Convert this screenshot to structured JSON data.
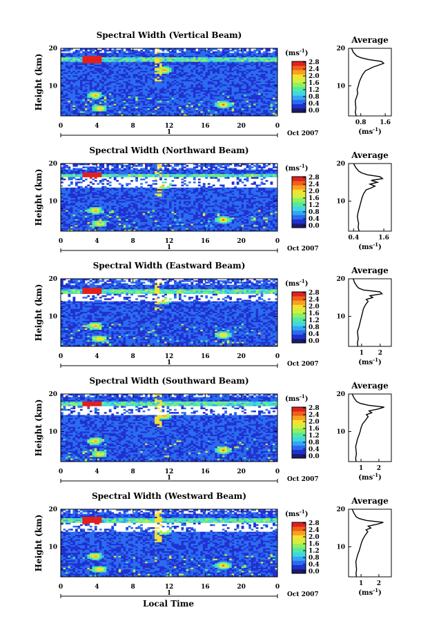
{
  "figure": {
    "xlabel": "Local Time",
    "date_label": "Oct 2007",
    "day_label": "1",
    "avg_title": "Average",
    "cbar_unit_base": "(ms",
    "cbar_unit_exp": "-1",
    "cbar_unit_close": ")",
    "avg_unit_base": "(ms",
    "avg_unit_exp": "-1",
    "avg_unit_close": ")",
    "ylabel": "Height (km)"
  },
  "colorbar": {
    "ticks": [
      "0.0",
      "0.4",
      "0.8",
      "1.2",
      "1.6",
      "2.0",
      "2.4",
      "2.8"
    ],
    "colors": [
      "#1b1b6b",
      "#2030d0",
      "#2a6cf0",
      "#35a5f5",
      "#40d8e0",
      "#55e8a0",
      "#8ff060",
      "#d0f040",
      "#f8e030",
      "#f8a020",
      "#f06018",
      "#e02020"
    ]
  },
  "chart_data": [
    {
      "type": "heatmap",
      "title": "Spectral Width (Vertical Beam)",
      "x_ticks": [
        "0",
        "4",
        "8",
        "12",
        "16",
        "20",
        "0"
      ],
      "y_ticks": [
        "20",
        "10"
      ],
      "xlim": [
        0,
        24
      ],
      "ylim": [
        2,
        20
      ],
      "layer_km": [
        16.5,
        17.5
      ],
      "gap_start_km": 17.0,
      "avg": {
        "x_ticks": [
          "0.8",
          "1.6"
        ],
        "xlim": [
          0.4,
          1.8
        ],
        "height_km": [
          2,
          3,
          4,
          5,
          6,
          7,
          8,
          9,
          10,
          11,
          12,
          13,
          14,
          15,
          15.5,
          16,
          16.5,
          17,
          17.5,
          18,
          19,
          20
        ],
        "values": [
          0.65,
          0.62,
          0.64,
          0.63,
          0.62,
          0.66,
          0.7,
          0.68,
          0.72,
          0.75,
          0.8,
          0.86,
          0.95,
          1.2,
          1.38,
          1.55,
          1.48,
          1.05,
          0.8,
          0.66,
          0.55,
          0.5
        ]
      }
    },
    {
      "type": "heatmap",
      "title": "Spectral Width (Northward Beam)",
      "x_ticks": [
        "0",
        "4",
        "8",
        "12",
        "16",
        "20",
        "0"
      ],
      "y_ticks": [
        "20",
        "10"
      ],
      "xlim": [
        0,
        24
      ],
      "ylim": [
        2,
        20
      ],
      "layer_km": [
        16.3,
        17.3
      ],
      "gap_start_km": 13.5,
      "avg": {
        "x_ticks": [
          "0.4",
          "1.6"
        ],
        "xlim": [
          0.2,
          1.9
        ],
        "height_km": [
          2,
          3,
          4,
          5,
          6,
          7,
          8,
          9,
          10,
          11,
          12,
          13,
          13.5,
          14,
          14.5,
          15,
          15.5,
          16,
          16.5,
          17,
          17.5,
          18,
          19,
          20
        ],
        "values": [
          0.62,
          0.58,
          0.6,
          0.57,
          0.55,
          0.58,
          0.62,
          0.66,
          0.7,
          0.74,
          0.8,
          0.9,
          1.1,
          1.25,
          1.05,
          1.35,
          1.1,
          1.55,
          1.45,
          0.95,
          0.72,
          0.6,
          0.48,
          0.4
        ]
      }
    },
    {
      "type": "heatmap",
      "title": "Spectral Width (Eastward Beam)",
      "x_ticks": [
        "0",
        "4",
        "8",
        "12",
        "16",
        "20",
        "0"
      ],
      "y_ticks": [
        "20",
        "10"
      ],
      "xlim": [
        0,
        24
      ],
      "ylim": [
        2,
        20
      ],
      "layer_km": [
        16.2,
        17.2
      ],
      "gap_start_km": 14.0,
      "avg": {
        "x_ticks": [
          "1",
          "2"
        ],
        "xlim": [
          0.3,
          2.6
        ],
        "height_km": [
          2,
          3,
          4,
          5,
          6,
          7,
          8,
          9,
          10,
          11,
          12,
          13,
          14,
          14.5,
          15,
          15.5,
          16,
          16.5,
          17,
          17.5,
          18,
          19,
          20
        ],
        "values": [
          0.8,
          0.78,
          0.82,
          0.8,
          0.78,
          0.85,
          0.9,
          0.95,
          1.0,
          1.05,
          1.1,
          1.2,
          1.35,
          1.25,
          1.6,
          1.45,
          2.1,
          2.0,
          1.1,
          0.85,
          0.75,
          0.62,
          0.55
        ]
      }
    },
    {
      "type": "heatmap",
      "title": "Spectral Width (Southward Beam)",
      "x_ticks": [
        "0",
        "4",
        "8",
        "12",
        "16",
        "20",
        "0"
      ],
      "y_ticks": [
        "20",
        "10"
      ],
      "xlim": [
        0,
        24
      ],
      "ylim": [
        2,
        20
      ],
      "layer_km": [
        16.8,
        17.8
      ],
      "gap_start_km": 14.5,
      "avg": {
        "x_ticks": [
          "1",
          "2"
        ],
        "xlim": [
          0.3,
          2.7
        ],
        "height_km": [
          2,
          3,
          4,
          5,
          6,
          7,
          8,
          9,
          10,
          11,
          12,
          13,
          14,
          14.5,
          15,
          15.5,
          16,
          16.5,
          17,
          17.5,
          18,
          19,
          20
        ],
        "values": [
          0.72,
          0.7,
          0.74,
          0.72,
          0.7,
          0.75,
          0.8,
          0.88,
          0.95,
          1.0,
          1.08,
          1.25,
          1.4,
          1.3,
          1.6,
          1.45,
          1.95,
          2.3,
          1.4,
          0.95,
          0.75,
          0.6,
          0.5
        ]
      }
    },
    {
      "type": "heatmap",
      "title": "Spectral Width (Westward Beam)",
      "x_ticks": [
        "0",
        "4",
        "8",
        "12",
        "16",
        "20",
        "0"
      ],
      "y_ticks": [
        "20",
        "10"
      ],
      "xlim": [
        0,
        24
      ],
      "ylim": [
        2,
        20
      ],
      "layer_km": [
        16.5,
        17.5
      ],
      "gap_start_km": 14.0,
      "avg": {
        "x_ticks": [
          "1",
          "2"
        ],
        "xlim": [
          0.3,
          2.7
        ],
        "height_km": [
          2,
          3,
          4,
          5,
          6,
          7,
          8,
          9,
          10,
          11,
          12,
          13,
          14,
          14.5,
          15,
          15.5,
          16,
          16.5,
          17,
          17.5,
          18,
          19,
          20
        ],
        "values": [
          0.74,
          0.72,
          0.75,
          0.73,
          0.71,
          0.76,
          0.82,
          0.9,
          0.96,
          1.02,
          1.1,
          1.22,
          1.38,
          1.28,
          1.55,
          1.4,
          1.9,
          2.25,
          1.3,
          0.9,
          0.72,
          0.6,
          0.5
        ]
      }
    }
  ]
}
